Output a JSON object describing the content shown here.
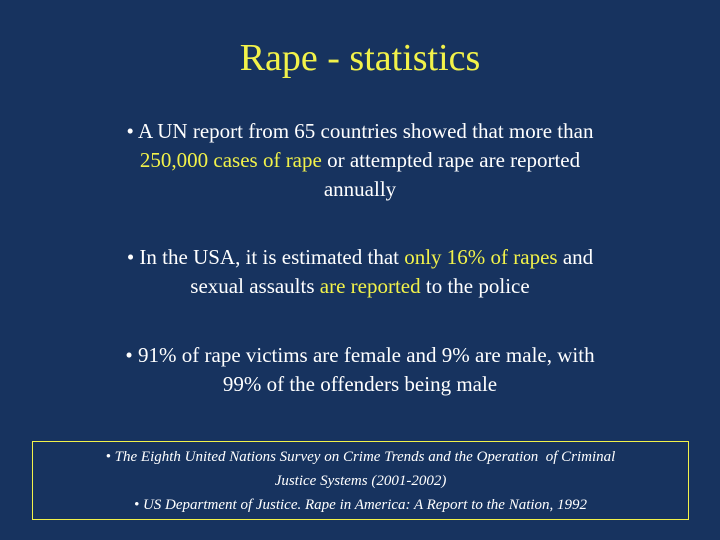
{
  "title": "Rape - statistics",
  "title_color": "#f2f24a",
  "highlight_color": "#f2f24a",
  "text_color": "#ffffff",
  "bullets": [
    {
      "lines": [
        {
          "runs": [
            {
              "text": "A UN report from 65 countries showed that more than",
              "highlight": false
            }
          ]
        },
        {
          "runs": [
            {
              "text": "250,000 cases of rape",
              "highlight": true
            },
            {
              "text": " or attempted rape are reported",
              "highlight": false
            }
          ]
        },
        {
          "runs": [
            {
              "text": "annually",
              "highlight": false
            }
          ]
        }
      ]
    },
    {
      "lines": [
        {
          "runs": [
            {
              "text": "In the USA, it is estimated that ",
              "highlight": false
            },
            {
              "text": "only 16% of rapes",
              "highlight": true
            },
            {
              "text": " and",
              "highlight": false
            }
          ]
        },
        {
          "runs": [
            {
              "text": "sexual assaults ",
              "highlight": false
            },
            {
              "text": "are reported",
              "highlight": true
            },
            {
              "text": " to the police",
              "highlight": false
            }
          ]
        }
      ]
    },
    {
      "lines": [
        {
          "runs": [
            {
              "text": "91% of rape victims are female and 9% are male, with",
              "highlight": false
            }
          ]
        },
        {
          "runs": [
            {
              "text": "99% of the offenders being male",
              "highlight": false
            }
          ]
        }
      ]
    }
  ],
  "sources": [
    {
      "lines": [
        "The Eighth United Nations Survey on Crime Trends and the Operation  of Criminal",
        "Justice Systems (2001-2002)"
      ]
    },
    {
      "lines": [
        "US Department of Justice. Rape in America: A Report to the Nation, 1992"
      ]
    }
  ]
}
